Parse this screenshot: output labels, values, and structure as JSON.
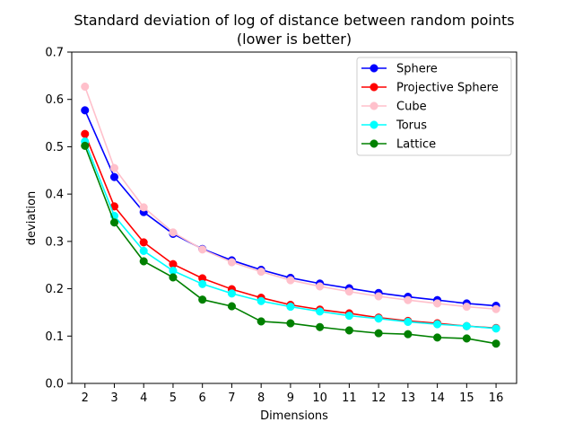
{
  "chart_data": {
    "type": "line",
    "title": "Standard deviation of log of distance between random points",
    "subtitle": "(lower is better)",
    "xlabel": "Dimensions",
    "ylabel": "deviation",
    "x": [
      2,
      3,
      4,
      5,
      6,
      7,
      8,
      9,
      10,
      11,
      12,
      13,
      14,
      15,
      16
    ],
    "xlim": [
      1.55,
      16.7
    ],
    "ylim": [
      0,
      0.7
    ],
    "yticks": [
      "0.0",
      "0.1",
      "0.2",
      "0.3",
      "0.4",
      "0.5",
      "0.6",
      "0.7"
    ],
    "grid": false,
    "legend_position": "top-right",
    "series": [
      {
        "name": "Sphere",
        "color": "#0000ff",
        "values": [
          0.577,
          0.436,
          0.362,
          0.316,
          0.284,
          0.26,
          0.24,
          0.223,
          0.211,
          0.201,
          0.191,
          0.183,
          0.176,
          0.169,
          0.164
        ]
      },
      {
        "name": "Projective Sphere",
        "color": "#ff0000",
        "values": [
          0.527,
          0.374,
          0.298,
          0.252,
          0.222,
          0.199,
          0.181,
          0.166,
          0.156,
          0.148,
          0.139,
          0.132,
          0.127,
          0.121,
          0.117
        ]
      },
      {
        "name": "Cube",
        "color": "#ffc0cb",
        "values": [
          0.627,
          0.455,
          0.372,
          0.319,
          0.283,
          0.256,
          0.236,
          0.218,
          0.205,
          0.194,
          0.184,
          0.176,
          0.169,
          0.162,
          0.157
        ]
      },
      {
        "name": "Torus",
        "color": "#00ffff",
        "values": [
          0.511,
          0.354,
          0.28,
          0.238,
          0.21,
          0.19,
          0.174,
          0.162,
          0.152,
          0.143,
          0.137,
          0.13,
          0.125,
          0.121,
          0.116
        ]
      },
      {
        "name": "Lattice",
        "color": "#008000",
        "values": [
          0.502,
          0.34,
          0.258,
          0.224,
          0.177,
          0.163,
          0.131,
          0.127,
          0.119,
          0.112,
          0.106,
          0.104,
          0.097,
          0.095,
          0.084
        ]
      }
    ]
  }
}
